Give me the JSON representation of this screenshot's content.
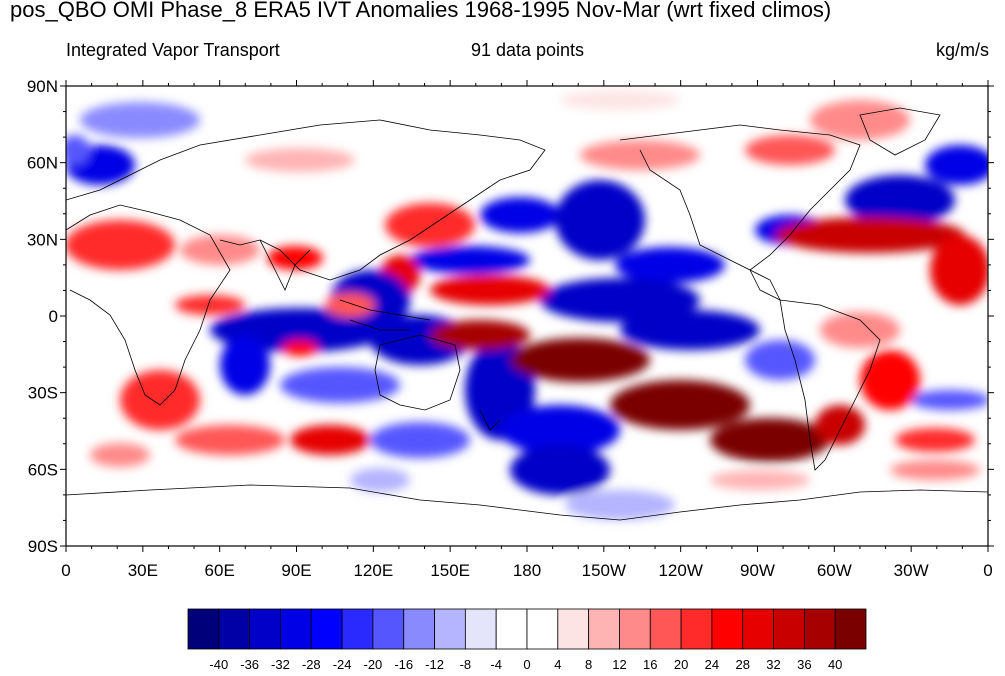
{
  "title": "pos_QBO OMI Phase_8 ERA5 IVT Anomalies 1968-1995 Nov-Mar (wrt fixed climos)",
  "subtitle_left": "Integrated Vapor Transport",
  "subtitle_center": "91 data points",
  "subtitle_right": "kg/m/s",
  "lat_labels": [
    "90N",
    "60N",
    "30N",
    "0",
    "30S",
    "60S",
    "90S"
  ],
  "lon_labels": [
    "0",
    "30E",
    "60E",
    "90E",
    "120E",
    "150E",
    "180",
    "150W",
    "120W",
    "90W",
    "60W",
    "30W",
    "0"
  ],
  "colorbar": {
    "labels": [
      "-40",
      "-36",
      "-32",
      "-28",
      "-24",
      "-20",
      "-16",
      "-12",
      "-8",
      "-4",
      "0",
      "4",
      "8",
      "12",
      "16",
      "20",
      "24",
      "28",
      "32",
      "36",
      "40"
    ],
    "colors": [
      "#00007a",
      "#0000a6",
      "#0000c8",
      "#0000e6",
      "#0000ff",
      "#2a2aff",
      "#5656ff",
      "#8a8aff",
      "#b4b4ff",
      "#e4e4fb",
      "#ffffff",
      "#ffffff",
      "#fde4e4",
      "#ffb4b4",
      "#ff8a8a",
      "#ff5656",
      "#ff2a2a",
      "#ff0000",
      "#e60000",
      "#c80000",
      "#a60000",
      "#7a0000"
    ]
  }
}
